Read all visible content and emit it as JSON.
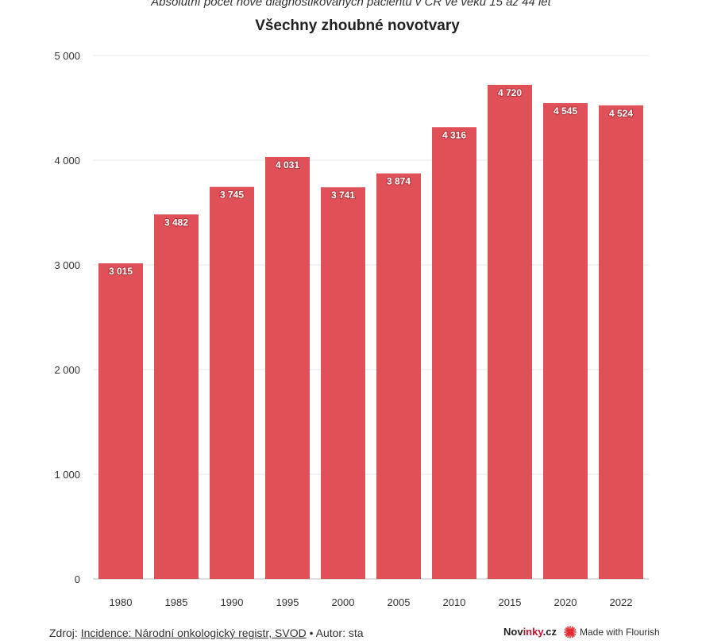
{
  "header": {
    "subtitle": "Absolutní počet nově diagnostikovaných pacientů v ČR ve věku 15 až 44 let",
    "title": "Všechny zhoubné novotvary"
  },
  "chart_data": {
    "type": "bar",
    "title": "Všechny zhoubné novotvary",
    "categories": [
      "1980",
      "1985",
      "1990",
      "1995",
      "2000",
      "2005",
      "2010",
      "2015",
      "2020",
      "2022"
    ],
    "values": [
      3015,
      3482,
      3745,
      4031,
      3741,
      3874,
      4316,
      4720,
      4545,
      4524
    ],
    "value_labels": [
      "3 015",
      "3 482",
      "3 745",
      "4 031",
      "3 741",
      "3 874",
      "4 316",
      "4 720",
      "4 545",
      "4 524"
    ],
    "ylim": [
      0,
      5000
    ],
    "yticks": [
      0,
      1000,
      2000,
      3000,
      4000,
      5000
    ],
    "ytick_labels": [
      "0",
      "1 000",
      "2 000",
      "3 000",
      "4 000",
      "5 000"
    ],
    "grid": true,
    "bar_color": "#e05058"
  },
  "footer": {
    "source_prefix": "Zdroj: ",
    "source_link": "Incidence: Národní onkologický registr, SVOD",
    "author": " • Autor: sta",
    "brand_a": "Nov",
    "brand_b": "inky",
    "brand_c": ".cz",
    "flourish": "Made with Flourish",
    "flourish_icon": "flourish-logo-icon"
  }
}
